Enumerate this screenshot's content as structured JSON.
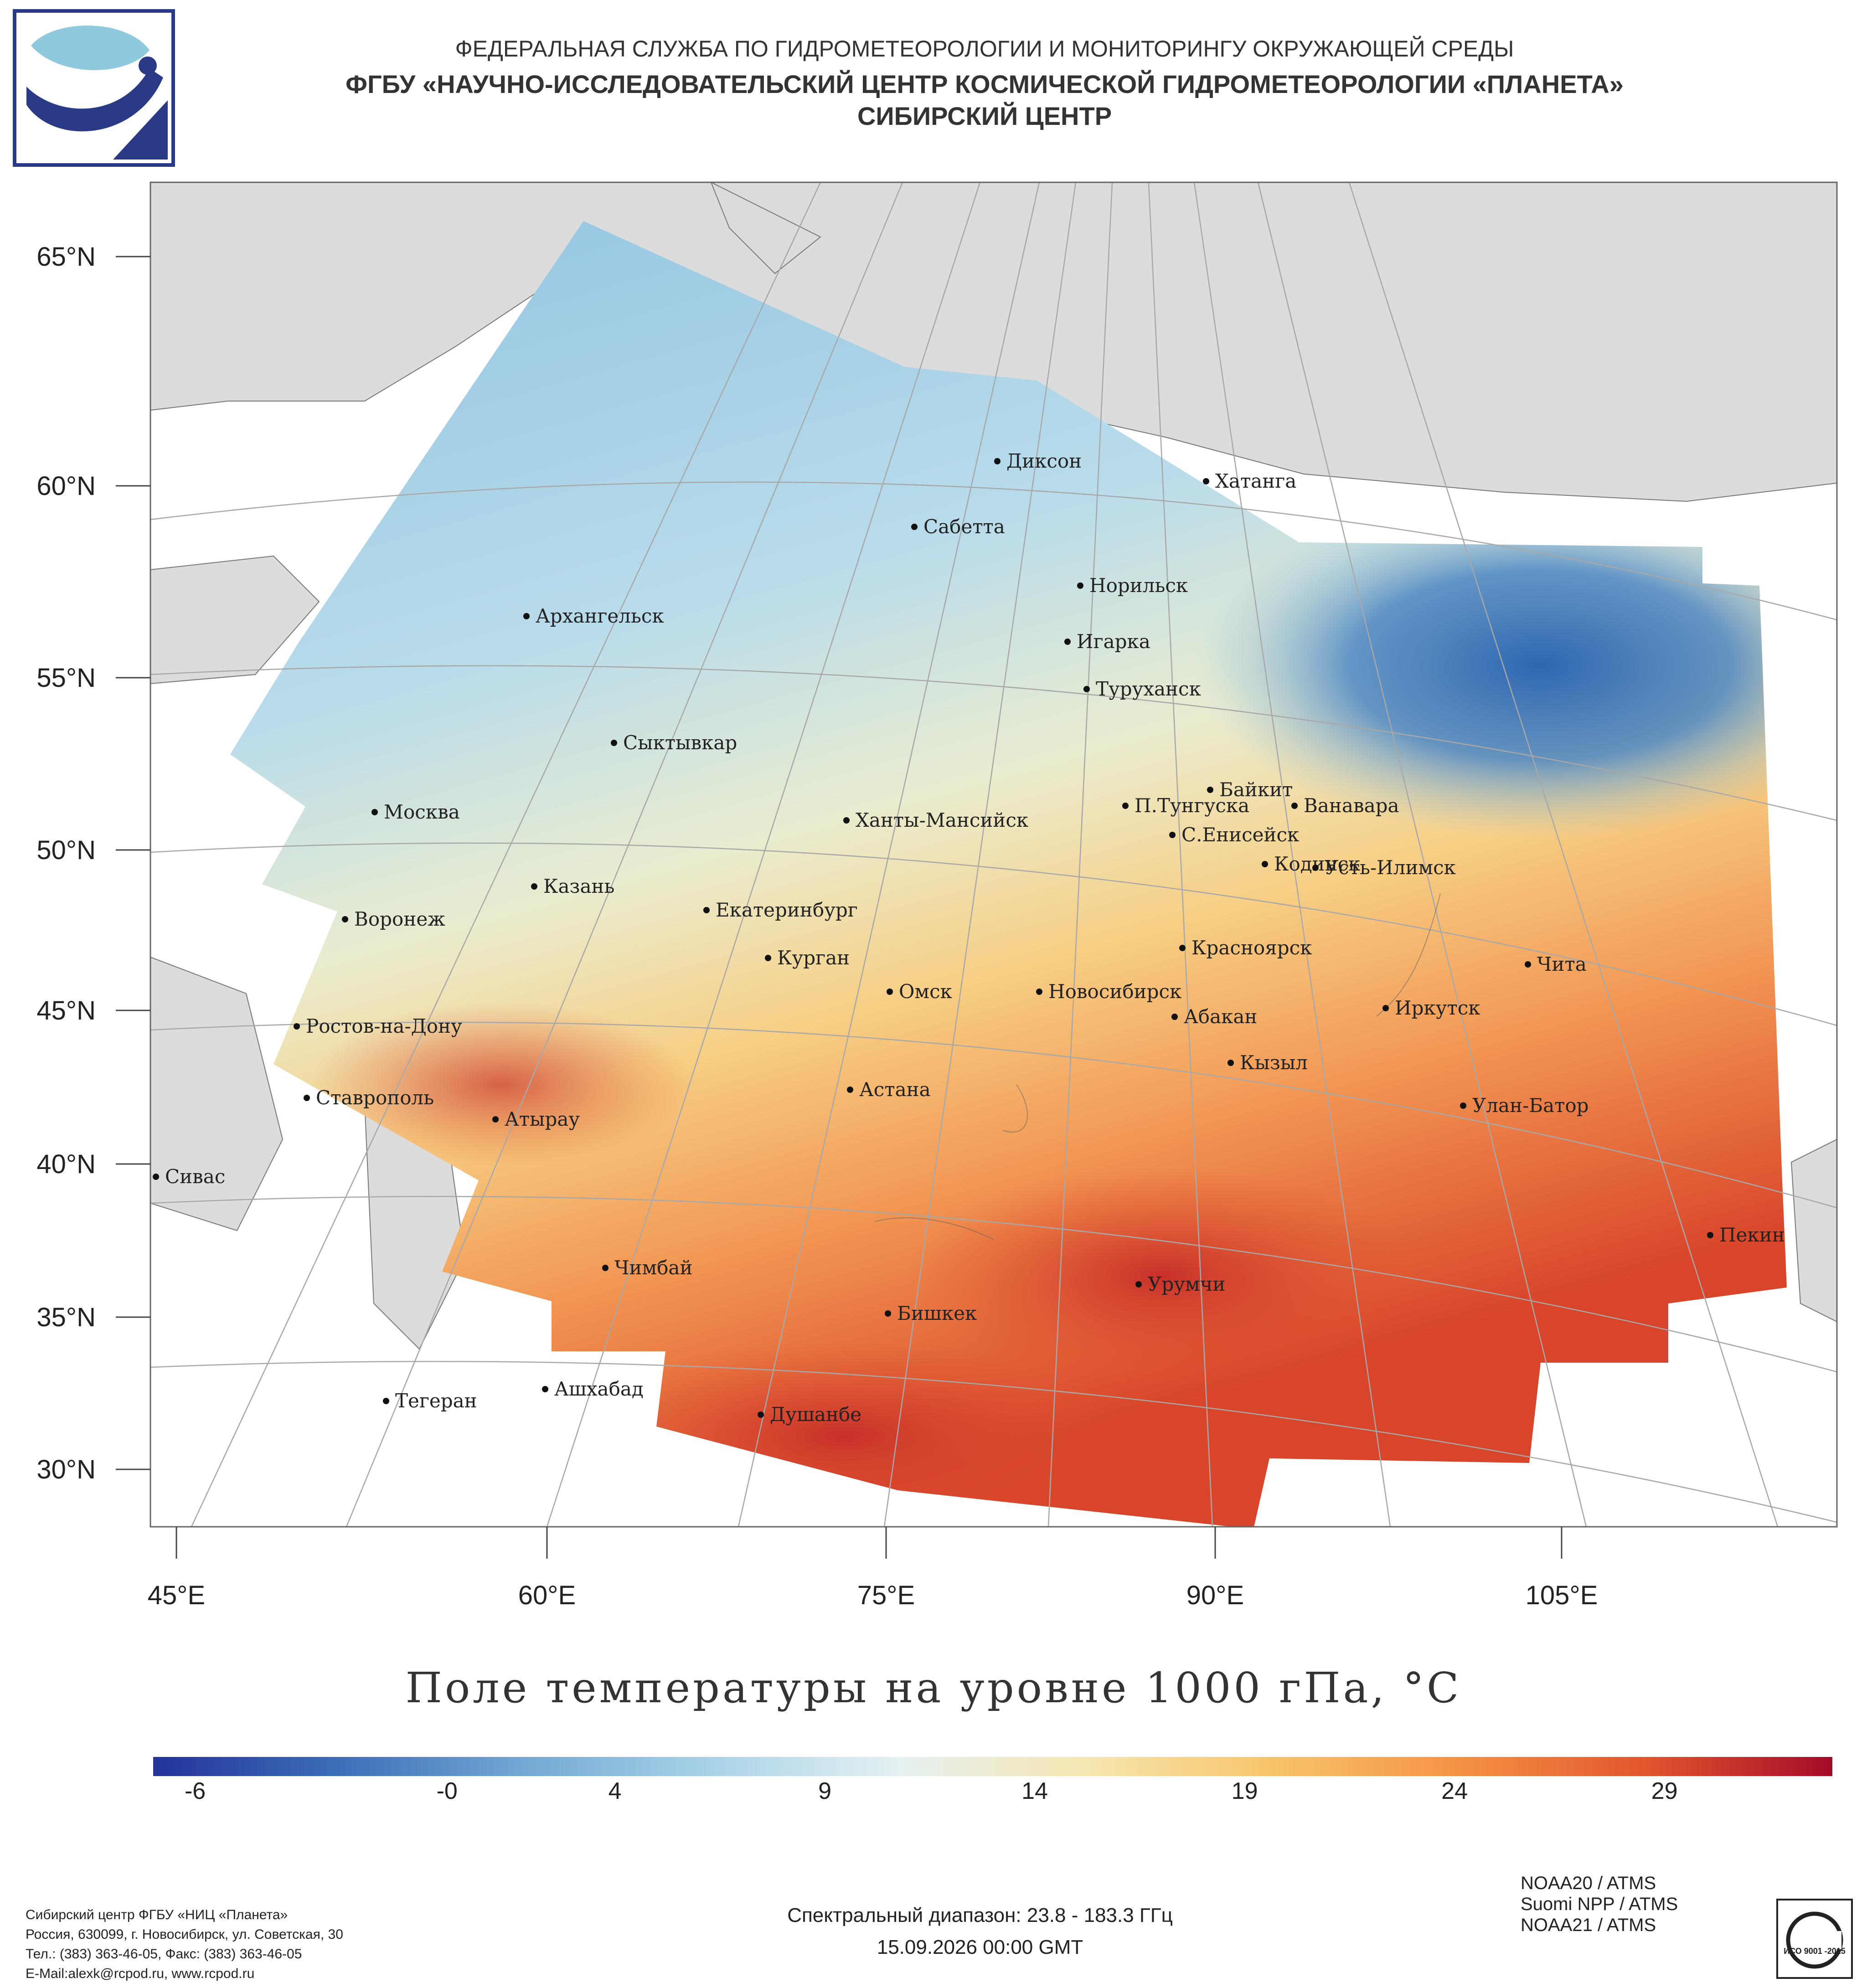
{
  "header": {
    "line1": "ФЕДЕРАЛЬНАЯ СЛУЖБА ПО ГИДРОМЕТЕОРОЛОГИИ И МОНИТОРИНГУ ОКРУЖАЮЩЕЙ СРЕДЫ",
    "line2": "ФГБУ «НАУЧНО-ИССЛЕДОВАТЕЛЬСКИЙ ЦЕНТР КОСМИЧЕСКОЙ ГИДРОМЕТЕОРОЛОГИИ «ПЛАНЕТА»",
    "line3": "СИБИРСКИЙ ЦЕНТР"
  },
  "map": {
    "title": "Поле температуры на уровне 1000 гПа, °C",
    "lat_labels": [
      "65°N",
      "60°N",
      "55°N",
      "50°N",
      "45°N",
      "40°N",
      "35°N",
      "30°N"
    ],
    "lon_labels": [
      "45°E",
      "60°E",
      "75°E",
      "90°E",
      "105°E"
    ],
    "cities": [
      "Диксон",
      "Хатанга",
      "Сабетта",
      "Норильск",
      "Архангельск",
      "Игарка",
      "Туруханск",
      "Сыктывкар",
      "Байкит",
      "П.Тунгуска",
      "Ванавара",
      "Москва",
      "Ханты-Мансийск",
      "С.Енисейск",
      "Кодинск",
      "Усть-Илимск",
      "Казань",
      "Екатеринбург",
      "Воронеж",
      "Красноярск",
      "Курган",
      "Чита",
      "Омск",
      "Новосибирск",
      "Иркутск",
      "Абакан",
      "Ростов-на-Дону",
      "Кызыл",
      "Ставрополь",
      "Астана",
      "Улан-Батор",
      "Атырау",
      "Сивас",
      "Пекин",
      "Чимбай",
      "Урумчи",
      "Бишкек",
      "Ашхабад",
      "Тегеран",
      "Душанбе"
    ],
    "colors": {
      "cold": "#2b5ca8",
      "cool": "#a9d3e8",
      "neutral": "#f0ecd8",
      "warm": "#f6c26e",
      "hot": "#d83a24",
      "land": "#dcdcdc",
      "grid": "#a8a8a8"
    }
  },
  "colorbar": {
    "min": -7,
    "max": 33,
    "tick_labels": [
      "-6",
      "-0",
      "4",
      "9",
      "14",
      "19",
      "24",
      "29"
    ],
    "stops": [
      "#24339a",
      "#3c6fb8",
      "#74a9d4",
      "#a9d3e8",
      "#e6f1f2",
      "#f6e6b0",
      "#f8c46a",
      "#f59244",
      "#e2552e",
      "#a50b28"
    ]
  },
  "footer": {
    "org": [
      "Сибирский центр ФГБУ «НИЦ «Планета»",
      "Россия, 630099, г. Новосибирск, ул. Советская, 30",
      "Тел.: (383) 363-46-05, Факс: (383) 363-46-05",
      "E-Mail:alexk@rcpod.ru, www.rcpod.ru"
    ],
    "spectral": "Спектральный диапазон: 23.8 - 183.3 ГГц",
    "datetime": "15.09.2026 00:00 GMT",
    "satellites": [
      "NOAA20 / ATMS",
      "Suomi NPP / ATMS",
      "NOAA21 / ATMS"
    ],
    "iso_badge": "ИСО 9001 -2015"
  }
}
